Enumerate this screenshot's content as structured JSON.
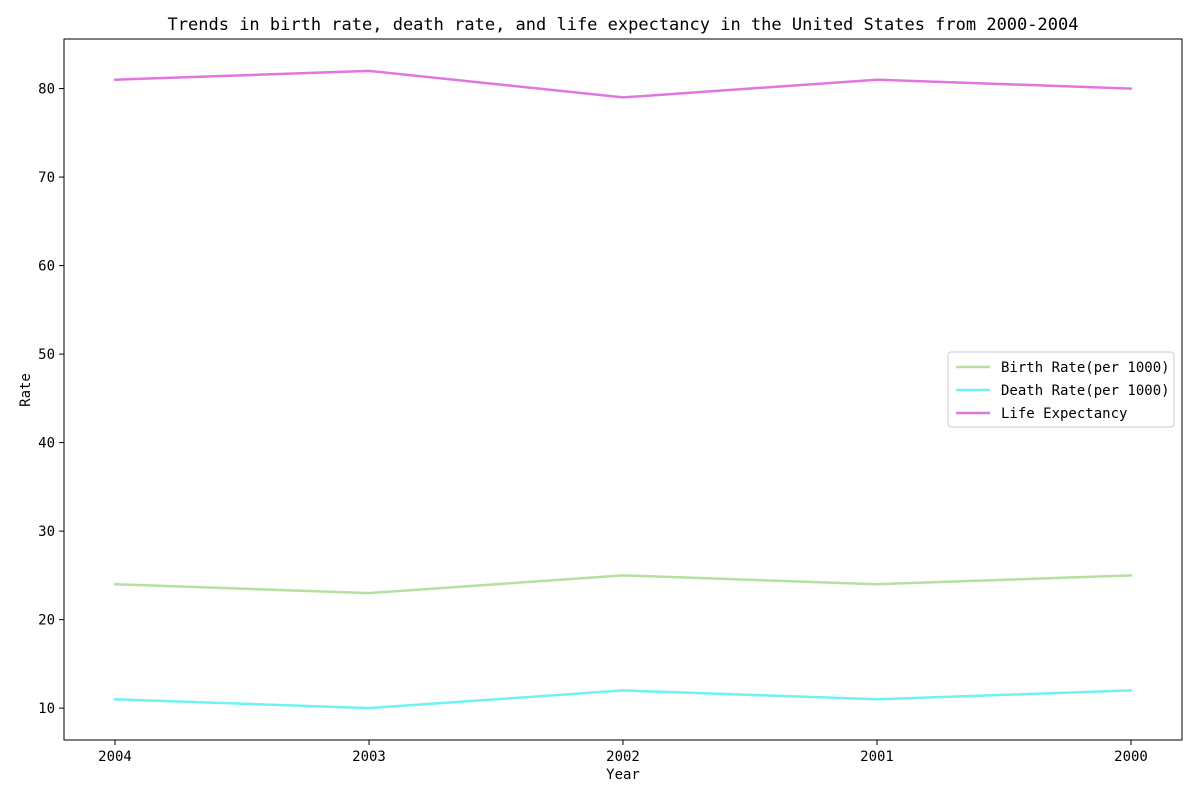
{
  "chart_data": {
    "type": "line",
    "title": "Trends in birth rate, death rate, and life expectancy in the United States from 2000-2004",
    "xlabel": "Year",
    "ylabel": "Rate",
    "categories": [
      "2004",
      "2003",
      "2002",
      "2001",
      "2000"
    ],
    "ylim": [
      6.4,
      85.6
    ],
    "yticks": [
      10,
      20,
      30,
      40,
      50,
      60,
      70,
      80
    ],
    "grid": false,
    "legend_position": "center-right",
    "series": [
      {
        "name": "Birth Rate(per 1000)",
        "color": "#b4e0a0",
        "values": [
          24,
          23,
          25,
          24,
          25
        ]
      },
      {
        "name": "Death Rate(per 1000)",
        "color": "#6ff2f0",
        "values": [
          11,
          10,
          12,
          11,
          12
        ]
      },
      {
        "name": "Life Expectancy",
        "color": "#e077e0",
        "values": [
          81,
          82,
          79,
          81,
          80
        ]
      }
    ]
  }
}
